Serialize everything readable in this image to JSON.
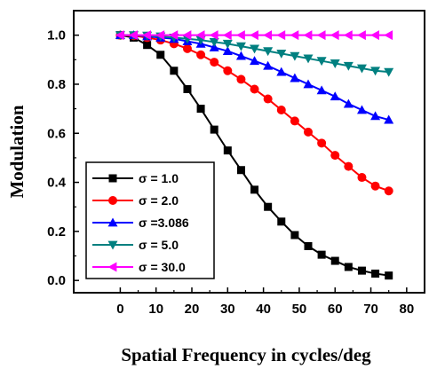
{
  "chart_data": {
    "type": "line",
    "title": "",
    "xlabel": "Spatial Frequency in cycles/deg",
    "ylabel": "Modulation",
    "xlim": [
      -13,
      85
    ],
    "ylim": [
      -0.05,
      1.1
    ],
    "xticks": [
      "0",
      "10",
      "20",
      "30",
      "40",
      "50",
      "60",
      "70",
      "80"
    ],
    "yticks": [
      "0.0",
      "0.2",
      "0.4",
      "0.6",
      "0.8",
      "1.0"
    ],
    "grid": false,
    "legend_position": "bottom-left",
    "x": [
      0,
      3.75,
      7.5,
      11.25,
      15,
      18.75,
      22.5,
      26.25,
      30,
      33.75,
      37.5,
      41.25,
      45,
      48.75,
      52.5,
      56.25,
      60,
      63.75,
      67.5,
      71.25,
      75
    ],
    "series": [
      {
        "name": "σ = 1.0",
        "color": "#000000",
        "marker": "square",
        "values": [
          1.0,
          0.99,
          0.96,
          0.92,
          0.855,
          0.78,
          0.7,
          0.615,
          0.53,
          0.45,
          0.37,
          0.3,
          0.24,
          0.185,
          0.14,
          0.105,
          0.08,
          0.055,
          0.04,
          0.028,
          0.02
        ]
      },
      {
        "name": "σ = 2.0",
        "color": "#ff0000",
        "marker": "circle",
        "values": [
          1.0,
          0.998,
          0.99,
          0.98,
          0.965,
          0.945,
          0.92,
          0.89,
          0.855,
          0.82,
          0.78,
          0.74,
          0.695,
          0.65,
          0.605,
          0.56,
          0.51,
          0.465,
          0.42,
          0.385,
          0.365
        ]
      },
      {
        "name": "σ =3.086",
        "color": "#0000ff",
        "marker": "triangle-up",
        "values": [
          1.0,
          1.0,
          0.995,
          0.99,
          0.985,
          0.975,
          0.965,
          0.95,
          0.935,
          0.915,
          0.895,
          0.875,
          0.85,
          0.825,
          0.8,
          0.775,
          0.75,
          0.72,
          0.695,
          0.67,
          0.655
        ]
      },
      {
        "name": "σ = 5.0",
        "color": "#008080",
        "marker": "triangle-down",
        "values": [
          1.0,
          1.0,
          0.998,
          0.995,
          0.99,
          0.985,
          0.98,
          0.972,
          0.965,
          0.955,
          0.945,
          0.935,
          0.925,
          0.915,
          0.905,
          0.895,
          0.885,
          0.875,
          0.865,
          0.855,
          0.85
        ]
      },
      {
        "name": "σ = 30.0",
        "color": "#ff00ff",
        "marker": "triangle-left",
        "values": [
          1.0,
          1.0,
          1.0,
          1.0,
          1.0,
          1.0,
          1.0,
          1.0,
          1.0,
          1.0,
          1.0,
          1.0,
          1.0,
          1.0,
          1.0,
          1.0,
          1.0,
          1.0,
          1.0,
          1.0,
          1.0
        ]
      }
    ]
  }
}
